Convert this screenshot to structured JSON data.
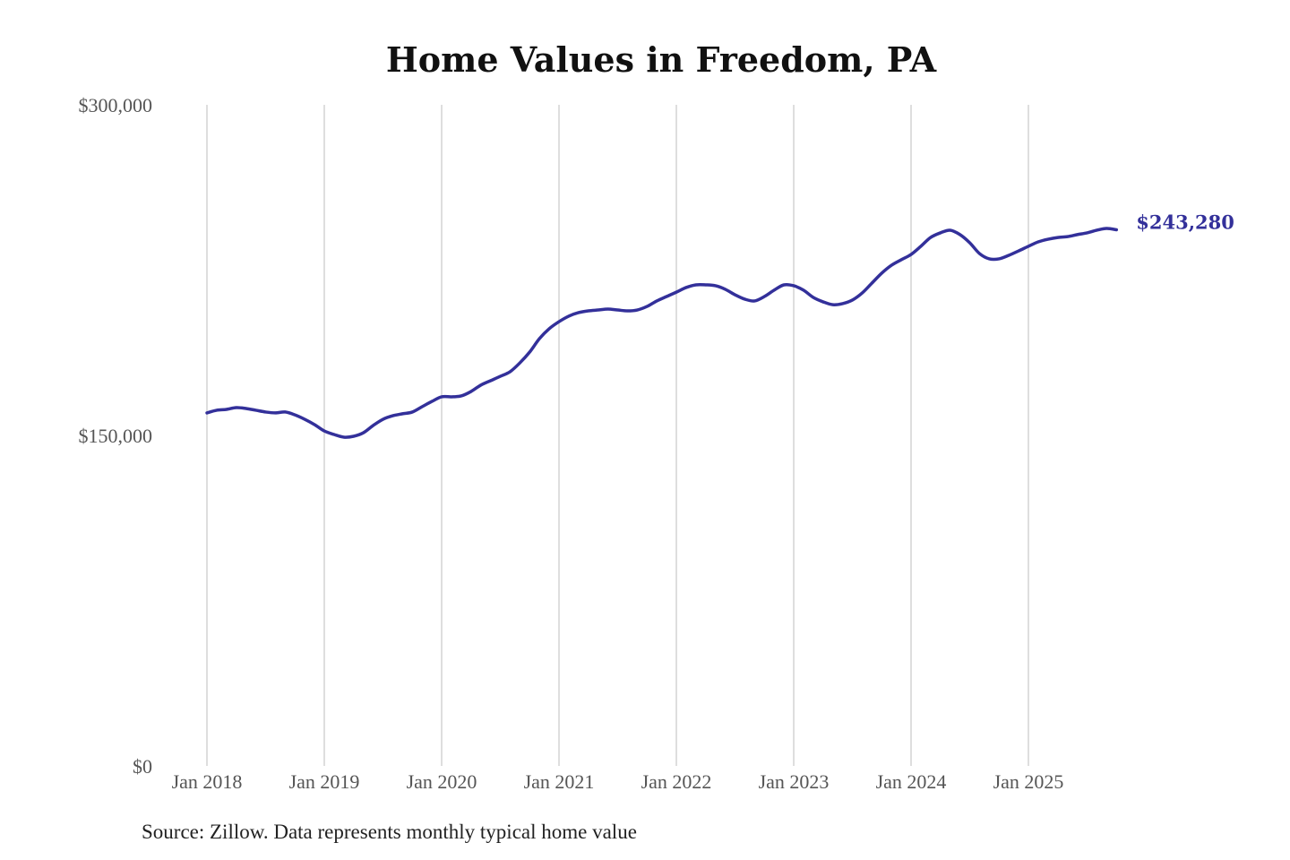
{
  "chart_data": {
    "type": "line",
    "title": "Home Values in Freedom, PA",
    "source": "Source: Zillow. Data represents monthly typical home value",
    "xlabel": "",
    "ylabel": "",
    "x_start": "2018-01",
    "x_frequency": "monthly",
    "x_ticks": [
      "Jan 2018",
      "Jan 2019",
      "Jan 2020",
      "Jan 2021",
      "Jan 2022",
      "Jan 2023",
      "Jan 2024",
      "Jan 2025"
    ],
    "y_ticks": [
      "$0",
      "$150,000",
      "$300,000"
    ],
    "ylim": [
      0,
      300000
    ],
    "grid": "vertical",
    "line_color": "#33309a",
    "end_label": "$243,280",
    "series": [
      {
        "values": [
          160200,
          161400,
          161800,
          162600,
          162200,
          161400,
          160600,
          160200,
          160600,
          159300,
          157300,
          154900,
          152000,
          150400,
          149200,
          149600,
          151200,
          154500,
          157300,
          158900,
          159800,
          160600,
          163000,
          165400,
          167500,
          167500,
          167900,
          169900,
          172800,
          174800,
          176800,
          178900,
          182900,
          187800,
          193900,
          198400,
          201600,
          204100,
          205700,
          206500,
          206900,
          207300,
          206900,
          206500,
          206900,
          208500,
          211000,
          213000,
          215000,
          217100,
          218300,
          218300,
          217900,
          216300,
          213800,
          211800,
          211000,
          213000,
          215900,
          218300,
          217900,
          215900,
          212600,
          210600,
          209300,
          209800,
          211400,
          214600,
          219100,
          223600,
          227200,
          229700,
          232100,
          235800,
          239800,
          241900,
          243100,
          241100,
          237400,
          232500,
          230100,
          230100,
          231700,
          233700,
          235800,
          237800,
          239000,
          239800,
          240200,
          241100,
          241900,
          243100,
          243900,
          243280
        ]
      }
    ]
  }
}
